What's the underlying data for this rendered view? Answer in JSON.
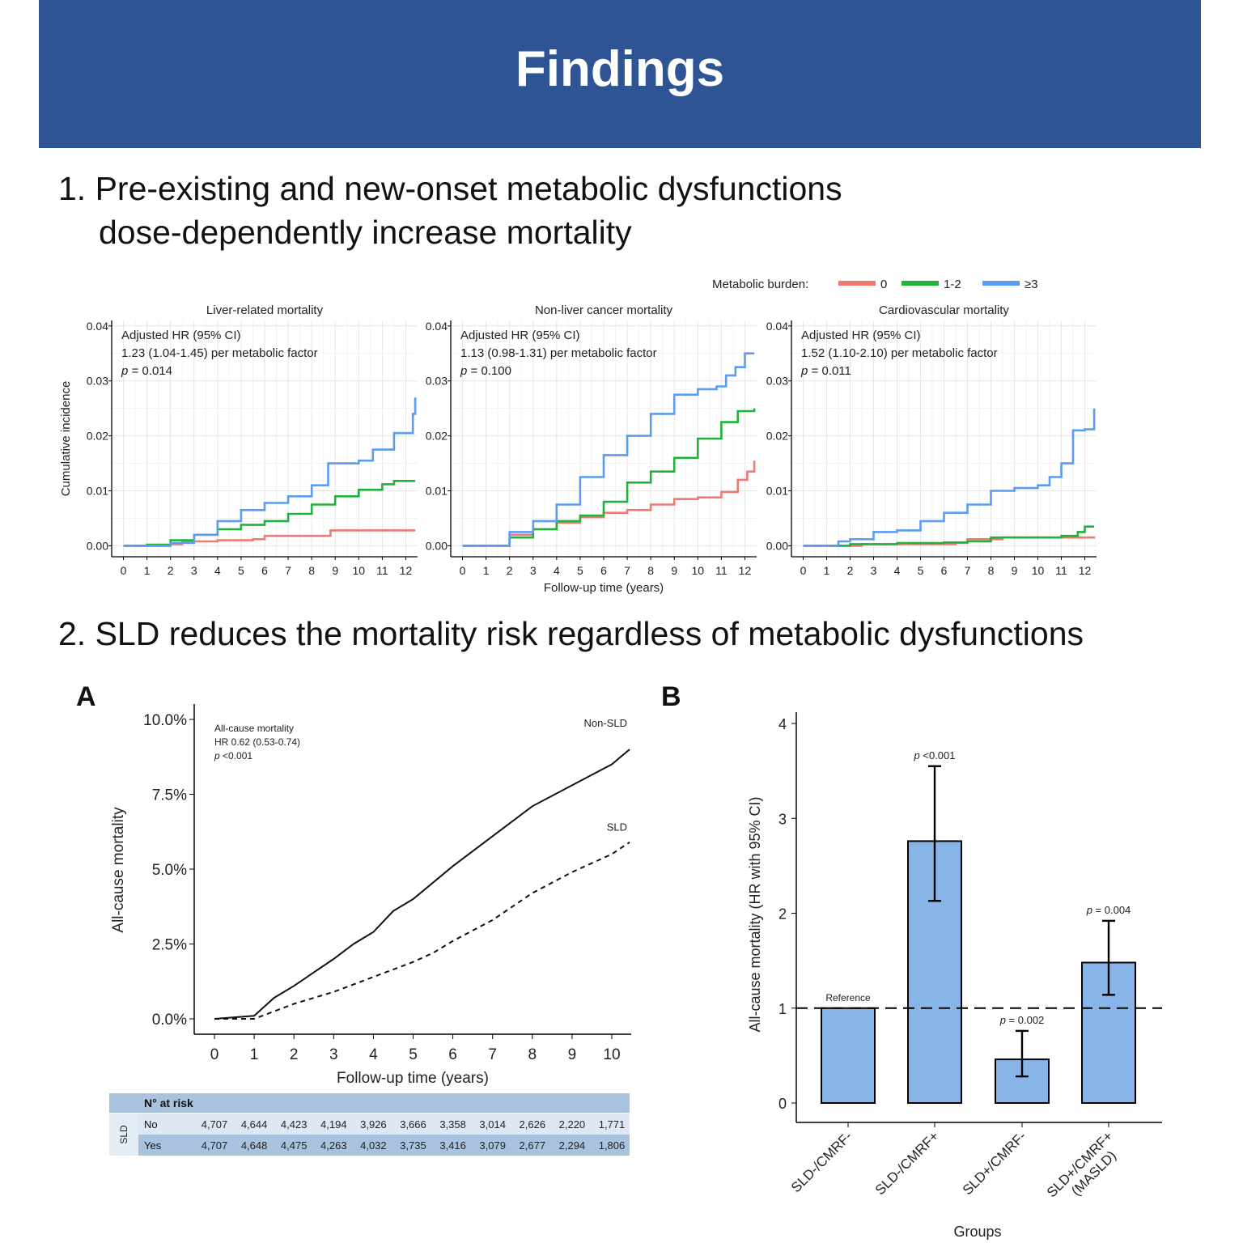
{
  "header": {
    "title": "Findings"
  },
  "section1": {
    "heading_line1": "1. Pre-existing and new-onset metabolic dysfunctions",
    "heading_line2": "dose-dependently increase mortality"
  },
  "section2": {
    "heading": "2. SLD reduces the mortality risk regardless of metabolic dysfunctions"
  },
  "legend": {
    "title": "Metabolic burden:",
    "items": [
      {
        "label": "0",
        "color": "#f07a72"
      },
      {
        "label": "1-2",
        "color": "#1fb339"
      },
      {
        "label": "≥3",
        "color": "#5b9bf0"
      }
    ]
  },
  "chart_data": [
    {
      "id": "liver",
      "type": "line",
      "step": true,
      "title": "Liver-related mortality",
      "ylabel": "Cumulative incidence",
      "xlabel": "",
      "xlim": [
        -0.5,
        12.5
      ],
      "ylim": [
        -0.002,
        0.041
      ],
      "xticks": [
        "0",
        "1",
        "2",
        "3",
        "4",
        "5",
        "6",
        "7",
        "8",
        "9",
        "10",
        "11",
        "12"
      ],
      "yticks": [
        "0.00",
        "0.01",
        "0.02",
        "0.03",
        "0.04"
      ],
      "grid": true,
      "annotation": [
        "Adjusted HR (95% CI)",
        "1.23 (1.04-1.45) per metabolic factor",
        "p = 0.014"
      ],
      "series": [
        {
          "name": "0",
          "color": "#f07a72",
          "points": [
            [
              0,
              0
            ],
            [
              1.5,
              0
            ],
            [
              2,
              0.0003
            ],
            [
              2.5,
              0.0008
            ],
            [
              4,
              0.001
            ],
            [
              5.5,
              0.0012
            ],
            [
              6,
              0.0018
            ],
            [
              8,
              0.0018
            ],
            [
              8.8,
              0.0028
            ],
            [
              12.4,
              0.0028
            ]
          ]
        },
        {
          "name": "1-2",
          "color": "#1fb339",
          "points": [
            [
              0,
              0
            ],
            [
              1,
              0.0002
            ],
            [
              2,
              0.001
            ],
            [
              3,
              0.002
            ],
            [
              4,
              0.003
            ],
            [
              5,
              0.0038
            ],
            [
              6,
              0.0045
            ],
            [
              7,
              0.0058
            ],
            [
              8,
              0.0075
            ],
            [
              9,
              0.009
            ],
            [
              10,
              0.0102
            ],
            [
              11,
              0.0112
            ],
            [
              11.5,
              0.0118
            ],
            [
              12.4,
              0.0118
            ]
          ]
        },
        {
          "name": "≥3",
          "color": "#5b9bf0",
          "points": [
            [
              0,
              0
            ],
            [
              1.5,
              0
            ],
            [
              2,
              0.0005
            ],
            [
              3,
              0.002
            ],
            [
              4,
              0.0045
            ],
            [
              5,
              0.0065
            ],
            [
              6,
              0.0078
            ],
            [
              7,
              0.009
            ],
            [
              8,
              0.011
            ],
            [
              8.7,
              0.015
            ],
            [
              10,
              0.0155
            ],
            [
              10.6,
              0.0175
            ],
            [
              11.5,
              0.0205
            ],
            [
              12.1,
              0.0205
            ],
            [
              12.3,
              0.024
            ],
            [
              12.4,
              0.027
            ]
          ]
        }
      ]
    },
    {
      "id": "cancer",
      "type": "line",
      "step": true,
      "title": "Non-liver cancer mortality",
      "ylabel": "",
      "xlabel": "Follow-up time (years)",
      "xlim": [
        -0.5,
        12.5
      ],
      "ylim": [
        -0.002,
        0.041
      ],
      "xticks": [
        "0",
        "1",
        "2",
        "3",
        "4",
        "5",
        "6",
        "7",
        "8",
        "9",
        "10",
        "11",
        "12"
      ],
      "yticks": [
        "0.00",
        "0.01",
        "0.02",
        "0.03",
        "0.04"
      ],
      "grid": true,
      "annotation": [
        "Adjusted HR (95% CI)",
        "1.13 (0.98-1.31) per metabolic factor",
        "p = 0.100"
      ],
      "series": [
        {
          "name": "0",
          "color": "#f07a72",
          "points": [
            [
              0,
              0
            ],
            [
              1.2,
              0
            ],
            [
              2,
              0.002
            ],
            [
              3,
              0.003
            ],
            [
              4,
              0.0042
            ],
            [
              5,
              0.0052
            ],
            [
              6,
              0.006
            ],
            [
              7,
              0.0065
            ],
            [
              8,
              0.0075
            ],
            [
              9,
              0.0085
            ],
            [
              10,
              0.0088
            ],
            [
              11,
              0.0098
            ],
            [
              11.7,
              0.012
            ],
            [
              12.1,
              0.0135
            ],
            [
              12.4,
              0.0155
            ]
          ]
        },
        {
          "name": "1-2",
          "color": "#1fb339",
          "points": [
            [
              0,
              0
            ],
            [
              1,
              0
            ],
            [
              2,
              0.0015
            ],
            [
              3,
              0.003
            ],
            [
              4,
              0.0045
            ],
            [
              5,
              0.0055
            ],
            [
              6,
              0.008
            ],
            [
              7,
              0.0115
            ],
            [
              8,
              0.0135
            ],
            [
              9,
              0.016
            ],
            [
              10,
              0.0195
            ],
            [
              11,
              0.0225
            ],
            [
              11.7,
              0.0245
            ],
            [
              12.4,
              0.025
            ]
          ]
        },
        {
          "name": "≥3",
          "color": "#5b9bf0",
          "points": [
            [
              0,
              0
            ],
            [
              1,
              0
            ],
            [
              2,
              0.0025
            ],
            [
              3,
              0.0045
            ],
            [
              4,
              0.0075
            ],
            [
              5,
              0.0125
            ],
            [
              6,
              0.0165
            ],
            [
              7,
              0.02
            ],
            [
              8,
              0.024
            ],
            [
              9,
              0.0275
            ],
            [
              10,
              0.0285
            ],
            [
              10.8,
              0.029
            ],
            [
              11.2,
              0.031
            ],
            [
              11.6,
              0.0325
            ],
            [
              12,
              0.035
            ],
            [
              12.4,
              0.035
            ]
          ]
        }
      ]
    },
    {
      "id": "cardio",
      "type": "line",
      "step": true,
      "title": "Cardiovascular mortality",
      "ylabel": "",
      "xlabel": "",
      "xlim": [
        -0.5,
        12.5
      ],
      "ylim": [
        -0.002,
        0.041
      ],
      "xticks": [
        "0",
        "1",
        "2",
        "3",
        "4",
        "5",
        "6",
        "7",
        "8",
        "9",
        "10",
        "11",
        "12"
      ],
      "yticks": [
        "0.00",
        "0.01",
        "0.02",
        "0.03",
        "0.04"
      ],
      "grid": true,
      "annotation": [
        "Adjusted HR (95% CI)",
        "1.52 (1.10-2.10) per metabolic factor",
        "p = 0.011"
      ],
      "series": [
        {
          "name": "0",
          "color": "#f07a72",
          "points": [
            [
              0,
              0
            ],
            [
              2,
              0
            ],
            [
              2.5,
              0.0003
            ],
            [
              6.5,
              0.0005
            ],
            [
              7,
              0.0012
            ],
            [
              8,
              0.0012
            ],
            [
              8.5,
              0.0015
            ],
            [
              12.4,
              0.0017
            ]
          ]
        },
        {
          "name": "1-2",
          "color": "#1fb339",
          "points": [
            [
              0,
              0
            ],
            [
              1.5,
              0
            ],
            [
              2,
              0.0003
            ],
            [
              4,
              0.0005
            ],
            [
              6,
              0.0006
            ],
            [
              7,
              0.0008
            ],
            [
              8,
              0.0015
            ],
            [
              11,
              0.0018
            ],
            [
              11.7,
              0.0025
            ],
            [
              12,
              0.0035
            ],
            [
              12.4,
              0.0035
            ]
          ]
        },
        {
          "name": "≥3",
          "color": "#5b9bf0",
          "points": [
            [
              0,
              0
            ],
            [
              1,
              0
            ],
            [
              1.5,
              0.0008
            ],
            [
              2,
              0.0012
            ],
            [
              3,
              0.0025
            ],
            [
              4,
              0.0028
            ],
            [
              5,
              0.0045
            ],
            [
              6,
              0.006
            ],
            [
              7,
              0.0075
            ],
            [
              8,
              0.01
            ],
            [
              9,
              0.0105
            ],
            [
              10,
              0.011
            ],
            [
              10.5,
              0.0125
            ],
            [
              11,
              0.015
            ],
            [
              11.5,
              0.021
            ],
            [
              12,
              0.0212
            ],
            [
              12.3,
              0.0212
            ],
            [
              12.4,
              0.025
            ]
          ]
        }
      ]
    },
    {
      "id": "panelA",
      "panel_label": "A",
      "type": "line",
      "title": "",
      "ylabel": "All-cause mortality",
      "xlabel": "Follow-up time (years)",
      "xlim": [
        -0.5,
        10.5
      ],
      "ylim": [
        -0.5,
        10.5
      ],
      "xticks": [
        "0",
        "1",
        "2",
        "3",
        "4",
        "5",
        "6",
        "7",
        "8",
        "9",
        "10"
      ],
      "yticks": [
        "0.0%",
        "2.5%",
        "5.0%",
        "7.5%",
        "10.0%"
      ],
      "grid": false,
      "annotation": [
        "All-cause mortality",
        "HR 0.62 (0.53-0.74)",
        "p <0.001"
      ],
      "series": [
        {
          "name": "Non-SLD",
          "style": "solid",
          "points": [
            [
              0,
              0
            ],
            [
              1,
              0.1
            ],
            [
              1.5,
              0.7
            ],
            [
              2,
              1.1
            ],
            [
              3,
              2
            ],
            [
              3.5,
              2.5
            ],
            [
              4,
              2.9
            ],
            [
              4.5,
              3.6
            ],
            [
              5,
              4
            ],
            [
              6,
              5.1
            ],
            [
              7,
              6.1
            ],
            [
              8,
              7.1
            ],
            [
              9,
              7.8
            ],
            [
              10,
              8.5
            ],
            [
              10.45,
              9
            ]
          ]
        },
        {
          "name": "SLD",
          "style": "dashed",
          "points": [
            [
              0,
              0
            ],
            [
              1,
              0
            ],
            [
              2,
              0.5
            ],
            [
              3,
              0.9
            ],
            [
              4,
              1.4
            ],
            [
              5,
              1.9
            ],
            [
              5.5,
              2.2
            ],
            [
              6,
              2.6
            ],
            [
              7,
              3.3
            ],
            [
              8,
              4.2
            ],
            [
              9,
              4.9
            ],
            [
              10,
              5.5
            ],
            [
              10.45,
              5.9
            ]
          ]
        }
      ],
      "risk_table": {
        "title": "N° at risk",
        "group_label": "SLD",
        "rows": [
          {
            "label": "No",
            "values": [
              "4,707",
              "4,644",
              "4,423",
              "4,194",
              "3,926",
              "3,666",
              "3,358",
              "3,014",
              "2,626",
              "2,220",
              "1,771"
            ]
          },
          {
            "label": "Yes",
            "values": [
              "4,707",
              "4,648",
              "4,475",
              "4,263",
              "4,032",
              "3,735",
              "3,416",
              "3,079",
              "2,677",
              "2,294",
              "1,806"
            ]
          }
        ]
      }
    },
    {
      "id": "panelB",
      "panel_label": "B",
      "type": "bar",
      "title": "",
      "ylabel": "All-cause mortality (HR with 95% CI)",
      "xlabel": "Groups",
      "ylim": [
        -0.2,
        4.15
      ],
      "yticks": [
        "0",
        "1",
        "2",
        "3",
        "4"
      ],
      "reference_line": 1,
      "categories": [
        "SLD-/CMRF-",
        "SLD-/CMRF+",
        "SLD+/CMRF-",
        "SLD+/CMRF+\n(MASLD)"
      ],
      "values": [
        1.0,
        2.76,
        0.46,
        1.48
      ],
      "ci_low": [
        null,
        2.13,
        0.28,
        1.14
      ],
      "ci_high": [
        null,
        3.55,
        0.76,
        1.92
      ],
      "labels": [
        "Reference",
        "p <0.001",
        "p = 0.002",
        "p = 0.004"
      ],
      "bar_color": "#88b5e8"
    }
  ]
}
